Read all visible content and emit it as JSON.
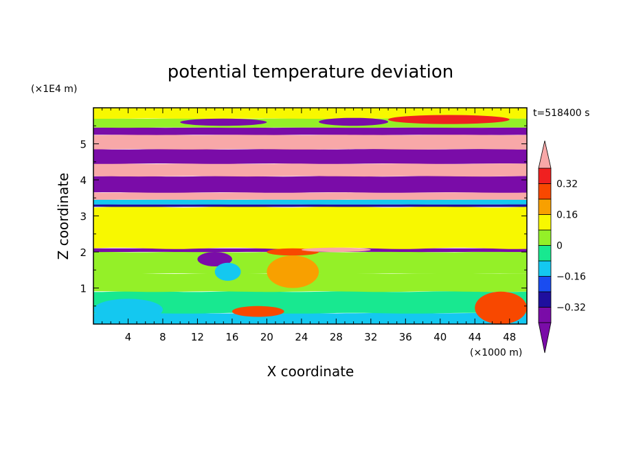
{
  "chart_data": {
    "type": "heatmap",
    "title": "potential temperature deviation",
    "time_label": "t=518400 s",
    "xlabel": "X coordinate",
    "ylabel": "Z coordinate",
    "x_unit": "(×1000 m)",
    "y_unit": "(×1E4 m)",
    "xlim": [
      0,
      50
    ],
    "ylim": [
      0,
      6
    ],
    "x_ticks": [
      "4",
      "8",
      "12",
      "16",
      "20",
      "24",
      "28",
      "32",
      "36",
      "40",
      "44",
      "48"
    ],
    "x_tick_values": [
      4,
      8,
      12,
      16,
      20,
      24,
      28,
      32,
      36,
      40,
      44,
      48
    ],
    "y_ticks": [
      "1",
      "2",
      "3",
      "4",
      "5"
    ],
    "y_tick_values": [
      1,
      2,
      3,
      4,
      5
    ],
    "colorbar": {
      "levels": [
        -0.4,
        -0.32,
        -0.24,
        -0.16,
        -0.08,
        0,
        0.08,
        0.16,
        0.24,
        0.32,
        0.4
      ],
      "labels": [
        "0.32",
        "0.16",
        "0",
        "−0.16",
        "−0.32"
      ],
      "label_values": [
        0.32,
        0.16,
        0,
        -0.16,
        -0.32
      ],
      "colors": [
        "#7a0ca8",
        "#1f0f9e",
        "#1a4cf0",
        "#14c8f0",
        "#18e890",
        "#94f028",
        "#f8f800",
        "#f8a000",
        "#f84800",
        "#f02020"
      ],
      "over_color": "#f8a8a8",
      "under_color": "#7a0ca8",
      "extend": "both"
    },
    "bands": [
      {
        "z": [
          0.0,
          0.3
        ],
        "value": -0.1
      },
      {
        "z": [
          0.3,
          0.9
        ],
        "value": -0.03
      },
      {
        "z": [
          0.9,
          1.4
        ],
        "value": 0.05
      },
      {
        "z": [
          1.4,
          2.0
        ],
        "value": 0.02
      },
      {
        "z": [
          2.0,
          2.1
        ],
        "value": -0.45
      },
      {
        "z": [
          2.1,
          3.25
        ],
        "value": 0.08
      },
      {
        "z": [
          3.25,
          3.32
        ],
        "value": -0.3
      },
      {
        "z": [
          3.32,
          3.45
        ],
        "value": -0.12
      },
      {
        "z": [
          3.45,
          3.65
        ],
        "value": 0.45
      },
      {
        "z": [
          3.65,
          4.1
        ],
        "value": -0.45
      },
      {
        "z": [
          4.1,
          4.45
        ],
        "value": 0.45
      },
      {
        "z": [
          4.45,
          4.85
        ],
        "value": -0.45
      },
      {
        "z": [
          4.85,
          5.25
        ],
        "value": 0.45
      },
      {
        "z": [
          5.25,
          5.45
        ],
        "value": -0.45
      },
      {
        "z": [
          5.45,
          5.7
        ],
        "value": 0.03
      },
      {
        "z": [
          5.7,
          6.0
        ],
        "value": 0.08
      }
    ],
    "features": [
      {
        "x": [
          10,
          20
        ],
        "z": [
          5.5,
          5.7
        ],
        "value": -0.45
      },
      {
        "x": [
          26,
          34
        ],
        "z": [
          5.5,
          5.72
        ],
        "value": -0.45
      },
      {
        "x": [
          34,
          48
        ],
        "z": [
          5.55,
          5.8
        ],
        "value": 0.35
      },
      {
        "x": [
          12,
          16
        ],
        "z": [
          1.6,
          2.0
        ],
        "value": -0.45
      },
      {
        "x": [
          14,
          17
        ],
        "z": [
          1.2,
          1.7
        ],
        "value": -0.12
      },
      {
        "x": [
          20,
          26
        ],
        "z": [
          1.9,
          2.1
        ],
        "value": 0.3
      },
      {
        "x": [
          24,
          32
        ],
        "z": [
          2.0,
          2.12
        ],
        "value": 0.45
      },
      {
        "x": [
          20,
          26
        ],
        "z": [
          1.0,
          1.9
        ],
        "value": 0.2
      },
      {
        "x": [
          0,
          8
        ],
        "z": [
          0.1,
          0.7
        ],
        "value": -0.1
      },
      {
        "x": [
          16,
          22
        ],
        "z": [
          0.2,
          0.5
        ],
        "value": 0.25
      },
      {
        "x": [
          44,
          50
        ],
        "z": [
          0.0,
          0.9
        ],
        "value": 0.3
      }
    ]
  }
}
